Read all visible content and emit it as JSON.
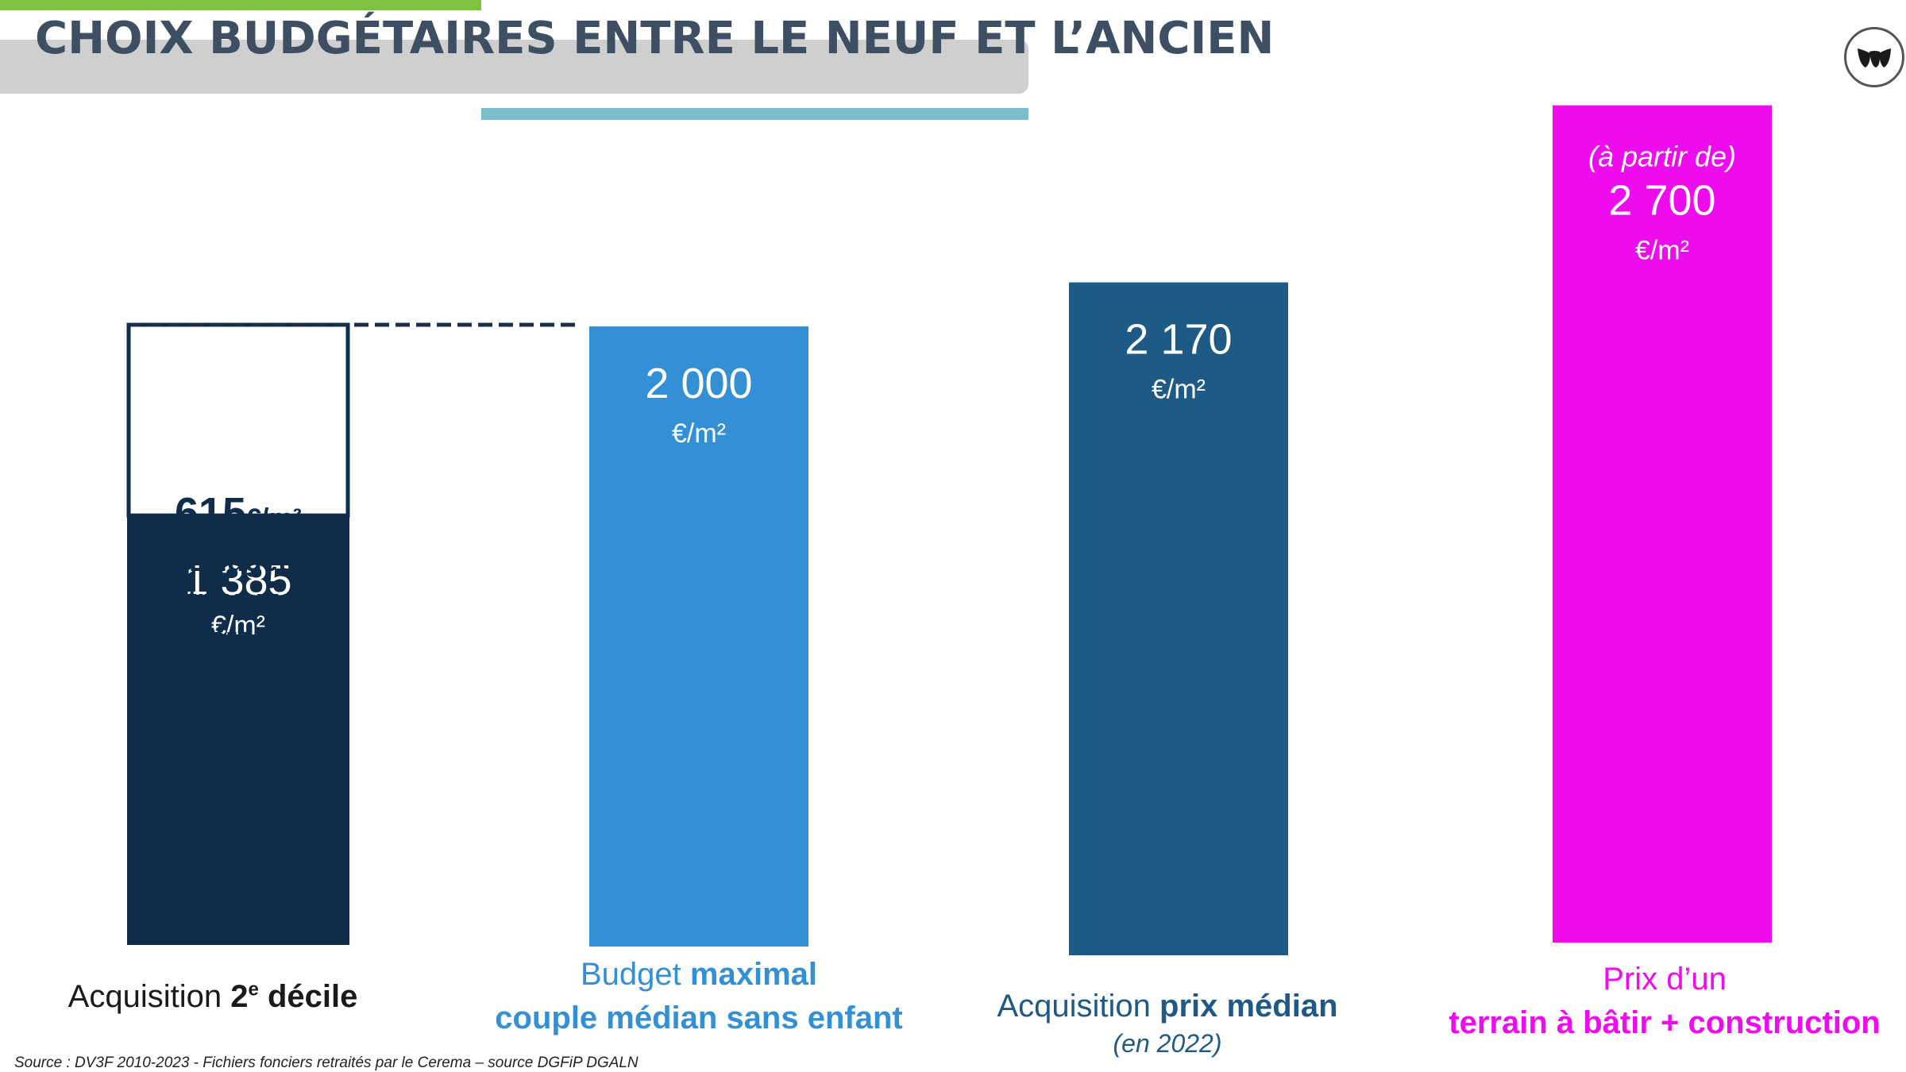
{
  "title": "CHOIX BUDGÉTAIRES ENTRE LE NEUF ET L’ANCIEN",
  "logo_icon": "brand-logo-icon",
  "colors": {
    "dark_navy": "#0f2d4a",
    "light_blue": "#3390d4",
    "mid_blue": "#1e5a85",
    "magenta": "#ee0cee",
    "green_accent": "#7fc241",
    "teal_accent": "#7cbccd",
    "title_band": "#cfcfcf"
  },
  "chart_data": {
    "type": "bar",
    "unit": "€/m²",
    "ylim": [
      0,
      2900
    ],
    "bars": [
      {
        "category_parts": [
          {
            "text": "Acquisition ",
            "bold": false
          },
          {
            "text": "2",
            "bold": true
          },
          {
            "text": "e",
            "bold": true,
            "sup": true
          },
          {
            "text": " décile",
            "bold": true
          }
        ],
        "value": 1385,
        "value_label": "1 385",
        "unit_label": "€/m²",
        "stacked": {
          "value": 615,
          "value_label": "615",
          "unit_label": "€/m²",
          "text_lines": [
            "Budget",
            "travaux",
            "différentiel"
          ]
        },
        "total": 2000
      },
      {
        "category_lines": [
          [
            {
              "text": "Budget ",
              "bold": false
            },
            {
              "text": "maximal",
              "bold": true
            }
          ],
          [
            {
              "text": "couple médian sans enfant",
              "bold": true
            }
          ]
        ],
        "value": 2000,
        "value_label": "2 000",
        "unit_label": "€/m²"
      },
      {
        "category_lines": [
          [
            {
              "text": "Acquisition ",
              "bold": false
            },
            {
              "text": "prix médian",
              "bold": true
            }
          ]
        ],
        "category_note": "(en 2022)",
        "value": 2170,
        "value_label": "2 170",
        "unit_label": "€/m²"
      },
      {
        "category_lines": [
          [
            {
              "text": "Prix d’un",
              "bold": false
            }
          ],
          [
            {
              "text": "terrain à bâtir + construction",
              "bold": true
            }
          ]
        ],
        "value_prefix": "(à partir de)",
        "value": 2700,
        "value_label": "2 700",
        "unit_label": "€/m²"
      }
    ],
    "reference_line": {
      "value": 2000,
      "style": "dashed"
    }
  },
  "source": {
    "lead": "Source : DV3F 2010-2023 - ",
    "rest": "Fichiers fonciers retraités par le Cerema – source DGFiP DGALN"
  }
}
